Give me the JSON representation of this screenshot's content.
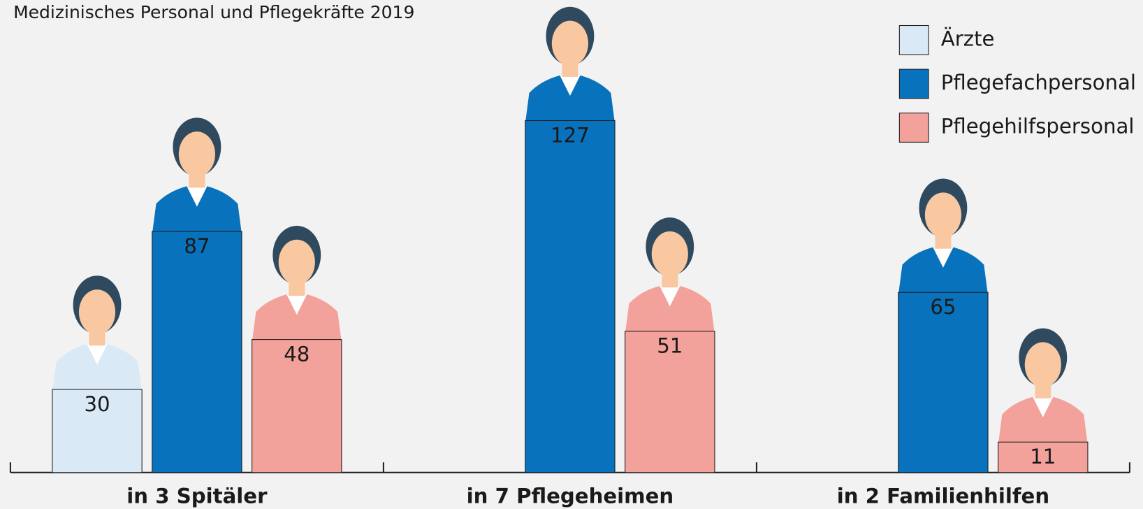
{
  "chart_data": {
    "type": "bar",
    "title": "Medizinisches Personal und Pflegekräfte 2019",
    "categories": [
      "in 3 Spitäler",
      "in 7 Pflegeheimen",
      "in 2 Familienhilfen"
    ],
    "series": [
      {
        "name": "Ärzte",
        "color": "#d9e9f5",
        "values": [
          30,
          null,
          null
        ]
      },
      {
        "name": "Pflegefachpersonal",
        "color": "#0872bc",
        "values": [
          87,
          127,
          65
        ]
      },
      {
        "name": "Pflegehilfspersonal",
        "color": "#f2a19b",
        "values": [
          48,
          51,
          11
        ]
      }
    ],
    "legend": "top-right",
    "grid": false
  }
}
